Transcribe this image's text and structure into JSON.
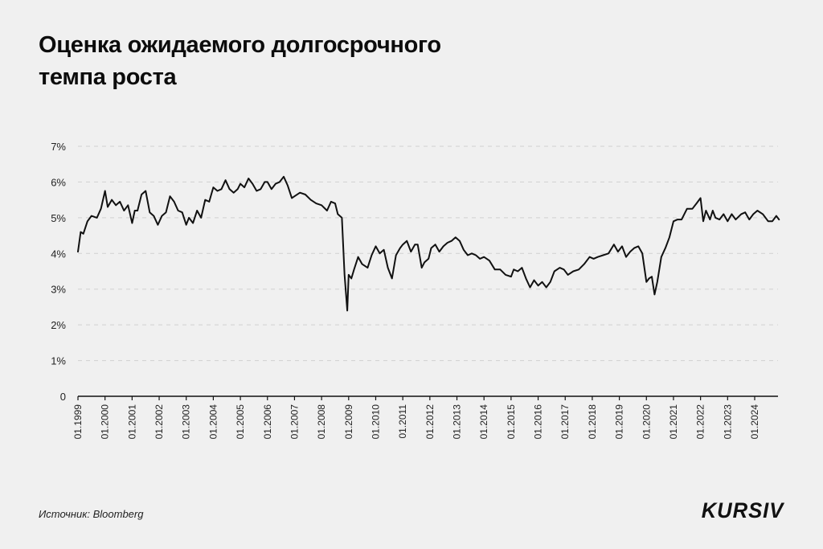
{
  "title": {
    "line1": "Оценка ожидаемого долгосрочного",
    "line2": "темпа роста"
  },
  "footer": {
    "source": "Источник: Bloomberg",
    "logo": "KURSIV"
  },
  "chart_data": {
    "type": "line",
    "title": "Оценка ожидаемого долгосрочного темпа роста",
    "xlabel": "",
    "ylabel": "",
    "ylim": [
      0,
      7
    ],
    "yticks": [
      "0",
      "1%",
      "2%",
      "3%",
      "4%",
      "5%",
      "6%",
      "7%"
    ],
    "xticks": [
      "01.1999",
      "01.2000",
      "01.2001",
      "01.2002",
      "01.2003",
      "01.2004",
      "01.2005",
      "01.2006",
      "01.2007",
      "01.2008",
      "01.2009",
      "01.2010",
      "01.2011",
      "01.2012",
      "01.2013",
      "01.2014",
      "01.2015",
      "01.2016",
      "01.2017",
      "01.2018",
      "01.2019",
      "01.2020",
      "01.2021",
      "01.2022",
      "01.2023",
      "01.2024"
    ],
    "grid": "horizontal dashed",
    "legend": "none",
    "series": [
      {
        "name": "Оценка ожидаемого долгосрочного темпа роста, %",
        "color": "#111111",
        "x": [
          1999.0,
          1999.1,
          1999.2,
          1999.35,
          1999.5,
          1999.7,
          1999.85,
          2000.0,
          2000.1,
          2000.25,
          2000.4,
          2000.55,
          2000.7,
          2000.85,
          2001.0,
          2001.1,
          2001.2,
          2001.35,
          2001.5,
          2001.65,
          2001.8,
          2001.95,
          2002.1,
          2002.25,
          2002.4,
          2002.55,
          2002.7,
          2002.85,
          2003.0,
          2003.1,
          2003.25,
          2003.4,
          2003.55,
          2003.7,
          2003.85,
          2004.0,
          2004.15,
          2004.3,
          2004.45,
          2004.6,
          2004.75,
          2004.9,
          2005.0,
          2005.15,
          2005.3,
          2005.45,
          2005.6,
          2005.75,
          2005.9,
          2006.0,
          2006.15,
          2006.3,
          2006.45,
          2006.6,
          2006.75,
          2006.9,
          2007.0,
          2007.2,
          2007.4,
          2007.6,
          2007.8,
          2008.0,
          2008.2,
          2008.35,
          2008.5,
          2008.6,
          2008.75,
          2008.85,
          2008.95,
          2009.0,
          2009.1,
          2009.2,
          2009.35,
          2009.5,
          2009.7,
          2009.85,
          2010.0,
          2010.15,
          2010.3,
          2010.45,
          2010.6,
          2010.75,
          2010.9,
          2011.0,
          2011.15,
          2011.3,
          2011.45,
          2011.55,
          2011.7,
          2011.8,
          2011.95,
          2012.05,
          2012.2,
          2012.35,
          2012.5,
          2012.65,
          2012.8,
          2012.95,
          2013.1,
          2013.25,
          2013.4,
          2013.55,
          2013.7,
          2013.85,
          2014.0,
          2014.2,
          2014.4,
          2014.6,
          2014.8,
          2015.0,
          2015.1,
          2015.25,
          2015.4,
          2015.55,
          2015.7,
          2015.85,
          2016.0,
          2016.15,
          2016.3,
          2016.45,
          2016.6,
          2016.8,
          2016.95,
          2017.1,
          2017.3,
          2017.5,
          2017.7,
          2017.9,
          2018.05,
          2018.2,
          2018.4,
          2018.6,
          2018.8,
          2018.95,
          2019.1,
          2019.25,
          2019.4,
          2019.55,
          2019.7,
          2019.85,
          2020.0,
          2020.1,
          2020.2,
          2020.3,
          2020.4,
          2020.55,
          2020.7,
          2020.85,
          2021.0,
          2021.15,
          2021.3,
          2021.5,
          2021.7,
          2021.85,
          2022.0,
          2022.1,
          2022.2,
          2022.35,
          2022.45,
          2022.55,
          2022.7,
          2022.85,
          2023.0,
          2023.15,
          2023.3,
          2023.5,
          2023.65,
          2023.8,
          2023.95,
          2024.1,
          2024.3,
          2024.5,
          2024.65,
          2024.8,
          2024.9
        ],
        "values": [
          4.05,
          4.6,
          4.55,
          4.9,
          5.05,
          5.0,
          5.25,
          5.75,
          5.3,
          5.5,
          5.35,
          5.45,
          5.2,
          5.35,
          4.85,
          5.2,
          5.2,
          5.65,
          5.75,
          5.15,
          5.05,
          4.8,
          5.05,
          5.15,
          5.6,
          5.45,
          5.2,
          5.15,
          4.8,
          5.0,
          4.85,
          5.2,
          5.0,
          5.5,
          5.45,
          5.85,
          5.75,
          5.8,
          6.05,
          5.8,
          5.7,
          5.8,
          5.95,
          5.85,
          6.1,
          5.95,
          5.75,
          5.8,
          6.0,
          6.0,
          5.8,
          5.95,
          6.0,
          6.15,
          5.9,
          5.55,
          5.6,
          5.7,
          5.65,
          5.5,
          5.4,
          5.35,
          5.2,
          5.45,
          5.4,
          5.1,
          5.0,
          3.4,
          2.4,
          3.4,
          3.3,
          3.55,
          3.9,
          3.7,
          3.6,
          3.95,
          4.2,
          4.0,
          4.1,
          3.6,
          3.3,
          3.95,
          4.15,
          4.25,
          4.35,
          4.05,
          4.25,
          4.25,
          3.6,
          3.75,
          3.85,
          4.15,
          4.25,
          4.05,
          4.2,
          4.3,
          4.35,
          4.45,
          4.35,
          4.1,
          3.95,
          4.0,
          3.95,
          3.85,
          3.9,
          3.8,
          3.55,
          3.55,
          3.4,
          3.35,
          3.55,
          3.5,
          3.6,
          3.3,
          3.05,
          3.25,
          3.1,
          3.2,
          3.05,
          3.2,
          3.5,
          3.6,
          3.55,
          3.4,
          3.5,
          3.55,
          3.7,
          3.9,
          3.85,
          3.9,
          3.95,
          4.0,
          4.25,
          4.05,
          4.2,
          3.9,
          4.05,
          4.15,
          4.2,
          4.0,
          3.2,
          3.3,
          3.35,
          2.85,
          3.2,
          3.9,
          4.15,
          4.45,
          4.9,
          4.95,
          4.95,
          5.25,
          5.25,
          5.4,
          5.55,
          4.9,
          5.2,
          4.95,
          5.2,
          5.0,
          4.95,
          5.1,
          4.9,
          5.1,
          4.95,
          5.1,
          5.15,
          4.95,
          5.1,
          5.2,
          5.1,
          4.9,
          4.9,
          5.05,
          4.95
        ]
      }
    ]
  }
}
